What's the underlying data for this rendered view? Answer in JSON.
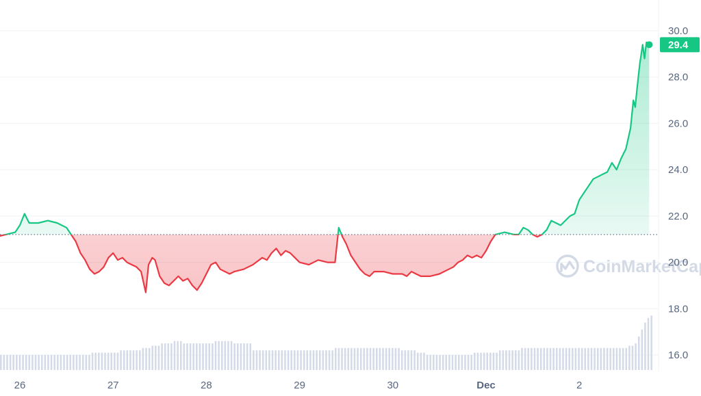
{
  "chart_data": {
    "type": "line",
    "x_ticks": [
      "26",
      "27",
      "28",
      "29",
      "30",
      "Dec",
      "2"
    ],
    "y_ticks": [
      "16.0",
      "18.0",
      "20.0",
      "22.0",
      "24.0",
      "26.0",
      "28.0",
      "30.0"
    ],
    "ylim": [
      15.5,
      31.0
    ],
    "xlim": [
      25.75,
      32.78
    ],
    "baseline": 21.2,
    "current_price": "29.4",
    "grid": "horizontal",
    "series": [
      {
        "points": [
          [
            25.75,
            21.1
          ],
          [
            25.85,
            21.2
          ],
          [
            25.95,
            21.3
          ],
          [
            26.0,
            21.6
          ],
          [
            26.05,
            22.1
          ],
          [
            26.1,
            21.7
          ],
          [
            26.2,
            21.7
          ],
          [
            26.3,
            21.8
          ],
          [
            26.4,
            21.7
          ],
          [
            26.5,
            21.5
          ],
          [
            26.55,
            21.2
          ],
          [
            26.6,
            20.9
          ],
          [
            26.65,
            20.4
          ],
          [
            26.7,
            20.1
          ],
          [
            26.75,
            19.7
          ],
          [
            26.8,
            19.5
          ],
          [
            26.85,
            19.6
          ],
          [
            26.9,
            19.8
          ],
          [
            26.95,
            20.2
          ],
          [
            27.0,
            20.4
          ],
          [
            27.05,
            20.1
          ],
          [
            27.1,
            20.2
          ],
          [
            27.15,
            20.0
          ],
          [
            27.2,
            19.9
          ],
          [
            27.25,
            19.8
          ],
          [
            27.3,
            19.6
          ],
          [
            27.35,
            18.7
          ],
          [
            27.38,
            19.9
          ],
          [
            27.42,
            20.2
          ],
          [
            27.45,
            20.1
          ],
          [
            27.5,
            19.4
          ],
          [
            27.55,
            19.1
          ],
          [
            27.6,
            19.0
          ],
          [
            27.65,
            19.2
          ],
          [
            27.7,
            19.4
          ],
          [
            27.75,
            19.2
          ],
          [
            27.8,
            19.3
          ],
          [
            27.85,
            19.0
          ],
          [
            27.9,
            18.8
          ],
          [
            27.95,
            19.1
          ],
          [
            28.0,
            19.5
          ],
          [
            28.05,
            19.9
          ],
          [
            28.1,
            20.0
          ],
          [
            28.15,
            19.7
          ],
          [
            28.2,
            19.6
          ],
          [
            28.25,
            19.5
          ],
          [
            28.3,
            19.6
          ],
          [
            28.4,
            19.7
          ],
          [
            28.5,
            19.9
          ],
          [
            28.6,
            20.2
          ],
          [
            28.65,
            20.1
          ],
          [
            28.7,
            20.4
          ],
          [
            28.75,
            20.6
          ],
          [
            28.8,
            20.3
          ],
          [
            28.85,
            20.5
          ],
          [
            28.9,
            20.4
          ],
          [
            28.95,
            20.2
          ],
          [
            29.0,
            20.0
          ],
          [
            29.1,
            19.9
          ],
          [
            29.2,
            20.1
          ],
          [
            29.3,
            20.0
          ],
          [
            29.38,
            20.0
          ],
          [
            29.42,
            21.5
          ],
          [
            29.46,
            21.1
          ],
          [
            29.5,
            20.8
          ],
          [
            29.55,
            20.3
          ],
          [
            29.6,
            20.0
          ],
          [
            29.65,
            19.7
          ],
          [
            29.7,
            19.5
          ],
          [
            29.75,
            19.4
          ],
          [
            29.8,
            19.6
          ],
          [
            29.9,
            19.6
          ],
          [
            30.0,
            19.5
          ],
          [
            30.1,
            19.5
          ],
          [
            30.15,
            19.4
          ],
          [
            30.2,
            19.6
          ],
          [
            30.25,
            19.5
          ],
          [
            30.3,
            19.4
          ],
          [
            30.4,
            19.4
          ],
          [
            30.5,
            19.5
          ],
          [
            30.6,
            19.7
          ],
          [
            30.65,
            19.8
          ],
          [
            30.7,
            20.0
          ],
          [
            30.75,
            20.1
          ],
          [
            30.8,
            20.3
          ],
          [
            30.85,
            20.2
          ],
          [
            30.9,
            20.3
          ],
          [
            30.95,
            20.2
          ],
          [
            31.0,
            20.5
          ],
          [
            31.05,
            20.9
          ],
          [
            31.1,
            21.2
          ],
          [
            31.2,
            21.3
          ],
          [
            31.3,
            21.2
          ],
          [
            31.35,
            21.2
          ],
          [
            31.4,
            21.5
          ],
          [
            31.45,
            21.4
          ],
          [
            31.5,
            21.2
          ],
          [
            31.55,
            21.1
          ],
          [
            31.6,
            21.2
          ],
          [
            31.65,
            21.4
          ],
          [
            31.7,
            21.8
          ],
          [
            31.8,
            21.6
          ],
          [
            31.9,
            22.0
          ],
          [
            31.95,
            22.1
          ],
          [
            32.0,
            22.7
          ],
          [
            32.05,
            23.0
          ],
          [
            32.1,
            23.3
          ],
          [
            32.15,
            23.6
          ],
          [
            32.2,
            23.7
          ],
          [
            32.25,
            23.8
          ],
          [
            32.3,
            23.9
          ],
          [
            32.35,
            24.3
          ],
          [
            32.4,
            24.0
          ],
          [
            32.45,
            24.5
          ],
          [
            32.5,
            24.9
          ],
          [
            32.55,
            25.8
          ],
          [
            32.58,
            27.0
          ],
          [
            32.6,
            26.7
          ],
          [
            32.62,
            27.5
          ],
          [
            32.65,
            28.6
          ],
          [
            32.68,
            29.4
          ],
          [
            32.7,
            28.8
          ],
          [
            32.72,
            29.5
          ],
          [
            32.75,
            29.4
          ]
        ]
      }
    ],
    "volume": [
      16.0,
      16.0,
      16.0,
      16.0,
      16.0,
      16.0,
      16.0,
      16.0,
      16.0,
      16.0,
      16.0,
      16.0,
      16.0,
      16.0,
      16.0,
      16.0,
      16.0,
      16.0,
      16.0,
      16.0,
      16.0,
      16.0,
      16.0,
      16.0,
      16.0,
      16.0,
      16.0,
      16.0,
      16.0,
      16.1,
      16.1,
      16.1,
      16.1,
      16.1,
      16.1,
      16.1,
      16.1,
      16.1,
      16.2,
      16.2,
      16.2,
      16.2,
      16.2,
      16.2,
      16.2,
      16.3,
      16.3,
      16.3,
      16.4,
      16.4,
      16.4,
      16.5,
      16.5,
      16.5,
      16.5,
      16.6,
      16.6,
      16.6,
      16.5,
      16.5,
      16.5,
      16.5,
      16.5,
      16.5,
      16.5,
      16.5,
      16.5,
      16.5,
      16.6,
      16.6,
      16.6,
      16.6,
      16.6,
      16.6,
      16.5,
      16.5,
      16.5,
      16.5,
      16.5,
      16.5,
      16.2,
      16.2,
      16.2,
      16.2,
      16.2,
      16.2,
      16.2,
      16.2,
      16.2,
      16.2,
      16.2,
      16.2,
      16.2,
      16.2,
      16.2,
      16.2,
      16.2,
      16.2,
      16.2,
      16.2,
      16.2,
      16.2,
      16.2,
      16.2,
      16.2,
      16.2,
      16.3,
      16.3,
      16.3,
      16.3,
      16.3,
      16.3,
      16.3,
      16.3,
      16.3,
      16.3,
      16.3,
      16.3,
      16.3,
      16.3,
      16.3,
      16.3,
      16.3,
      16.3,
      16.3,
      16.3,
      16.3,
      16.2,
      16.2,
      16.2,
      16.2,
      16.2,
      16.1,
      16.1,
      16.1,
      16.0,
      16.0,
      16.0,
      16.0,
      16.0,
      16.0,
      16.0,
      16.0,
      16.0,
      16.0,
      16.0,
      16.0,
      16.0,
      16.0,
      16.0,
      16.1,
      16.1,
      16.1,
      16.1,
      16.1,
      16.1,
      16.1,
      16.1,
      16.2,
      16.2,
      16.2,
      16.2,
      16.2,
      16.2,
      16.2,
      16.3,
      16.3,
      16.3,
      16.3,
      16.3,
      16.3,
      16.3,
      16.3,
      16.3,
      16.3,
      16.3,
      16.3,
      16.3,
      16.3,
      16.3,
      16.3,
      16.3,
      16.3,
      16.3,
      16.3,
      16.3,
      16.3,
      16.3,
      16.3,
      16.3,
      16.3,
      16.3,
      16.3,
      16.3,
      16.3,
      16.3,
      16.3,
      16.3,
      16.3,
      16.4,
      16.4,
      16.5,
      16.8,
      17.1,
      17.4,
      17.6,
      17.7
    ],
    "colors": {
      "up": "#16c784",
      "down": "#ea3943",
      "grid": "#eff2f5",
      "axis_text": "#58667e",
      "volume": "#cfd6e4",
      "baseline": "#58667e"
    }
  },
  "watermark": {
    "text": "CoinMarketCap",
    "icon": "coinmarketcap-logo-icon"
  }
}
